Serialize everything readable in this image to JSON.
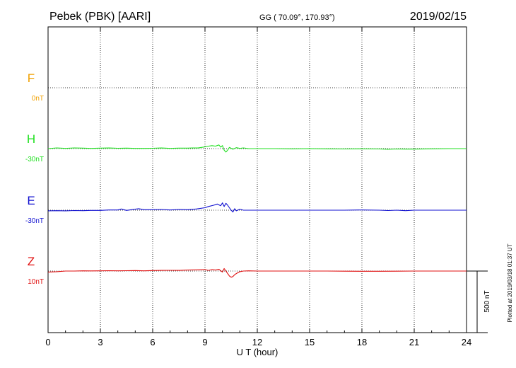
{
  "header": {
    "station": "Pebek (PBK)  [AARI]",
    "coords": "GG ( 70.09°, 170.93°)",
    "date": "2019/02/15"
  },
  "footer": {
    "plotted": "Plotted at 2019/03/18 01:37 UT"
  },
  "colors": {
    "F": "#f0a000",
    "H": "#20e020",
    "E": "#1010d0",
    "Z": "#e01010",
    "grid": "#000000"
  },
  "chart_data": {
    "type": "line",
    "xlabel": "U T (hour)",
    "ylabel": "",
    "xlim": [
      0,
      24
    ],
    "x_ticks": [
      "0",
      "3",
      "6",
      "9",
      "12",
      "15",
      "18",
      "21",
      "24"
    ],
    "scale_bar_label": "500 nT",
    "scale_bar_nT": 500,
    "series": [
      {
        "name": "F",
        "offset_label": "0nT",
        "x": [],
        "values": []
      },
      {
        "name": "H",
        "offset_label": "-30nT",
        "x": [
          0,
          0.5,
          1,
          1.5,
          2,
          2.5,
          3,
          3.5,
          4,
          4.5,
          5,
          5.5,
          6,
          6.5,
          7,
          7.5,
          8,
          8.3,
          8.6,
          8.9,
          9.2,
          9.4,
          9.6,
          9.8,
          9.9,
          10.0,
          10.1,
          10.2,
          10.3,
          10.4,
          10.6,
          10.8,
          11.0,
          11.2,
          11.5,
          12,
          13,
          14,
          15,
          16,
          17,
          18,
          19,
          19.5,
          20,
          20.5,
          21,
          22,
          23,
          24
        ],
        "values": [
          0,
          6,
          2,
          6,
          4,
          2,
          4,
          5,
          3,
          4,
          2,
          2,
          3,
          5,
          2,
          4,
          4,
          6,
          5,
          12,
          20,
          24,
          20,
          30,
          12,
          25,
          -12,
          -28,
          -12,
          10,
          -5,
          8,
          2,
          6,
          0,
          0,
          0,
          -2,
          0,
          -2,
          -3,
          -2,
          -3,
          -6,
          -3,
          -4,
          -4,
          -2,
          0,
          0
        ]
      },
      {
        "name": "E",
        "offset_label": "-30nT",
        "x": [
          0,
          0.5,
          1,
          1.5,
          2,
          2.5,
          3,
          3.5,
          4,
          4.2,
          4.5,
          5,
          5.2,
          5.5,
          6,
          6.5,
          7,
          7.5,
          8,
          8.5,
          9.0,
          9.2,
          9.5,
          9.7,
          9.9,
          10.0,
          10.1,
          10.2,
          10.3,
          10.4,
          10.5,
          10.6,
          10.7,
          10.8,
          11.0,
          11.2,
          11.5,
          12,
          13,
          14,
          15,
          16,
          17,
          18,
          19,
          19.5,
          20,
          20.5,
          21,
          22,
          23,
          24
        ],
        "values": [
          -5,
          -4,
          -5,
          -3,
          -4,
          -2,
          -2,
          2,
          2,
          10,
          -2,
          8,
          12,
          4,
          4,
          6,
          2,
          6,
          4,
          10,
          20,
          30,
          40,
          50,
          36,
          60,
          30,
          56,
          40,
          20,
          0,
          -15,
          12,
          -5,
          8,
          0,
          0,
          0,
          0,
          0,
          0,
          0,
          0,
          2,
          0,
          -3,
          0,
          -4,
          0,
          0,
          0,
          0
        ]
      },
      {
        "name": "Z",
        "offset_label": "10nT",
        "x": [
          0,
          0.5,
          1,
          1.5,
          2,
          2.5,
          3,
          3.5,
          4,
          4.5,
          5,
          5.5,
          6,
          6.5,
          7,
          7.5,
          8,
          8.5,
          9.0,
          9.2,
          9.4,
          9.6,
          9.8,
          10.0,
          10.1,
          10.2,
          10.3,
          10.4,
          10.5,
          10.6,
          10.7,
          10.8,
          11.0,
          11.2,
          11.5,
          12,
          13,
          14,
          15,
          16,
          17,
          18,
          19,
          20,
          21,
          22,
          23,
          24
        ],
        "values": [
          -8,
          -5,
          0,
          0,
          2,
          1,
          2,
          3,
          2,
          3,
          4,
          2,
          4,
          5,
          6,
          5,
          8,
          10,
          12,
          5,
          12,
          8,
          14,
          -8,
          20,
          0,
          -20,
          -40,
          -50,
          -45,
          -30,
          -20,
          -5,
          0,
          2,
          0,
          0,
          0,
          0,
          0,
          -1,
          -2,
          -2,
          -1,
          0,
          0,
          0,
          0
        ]
      }
    ]
  }
}
